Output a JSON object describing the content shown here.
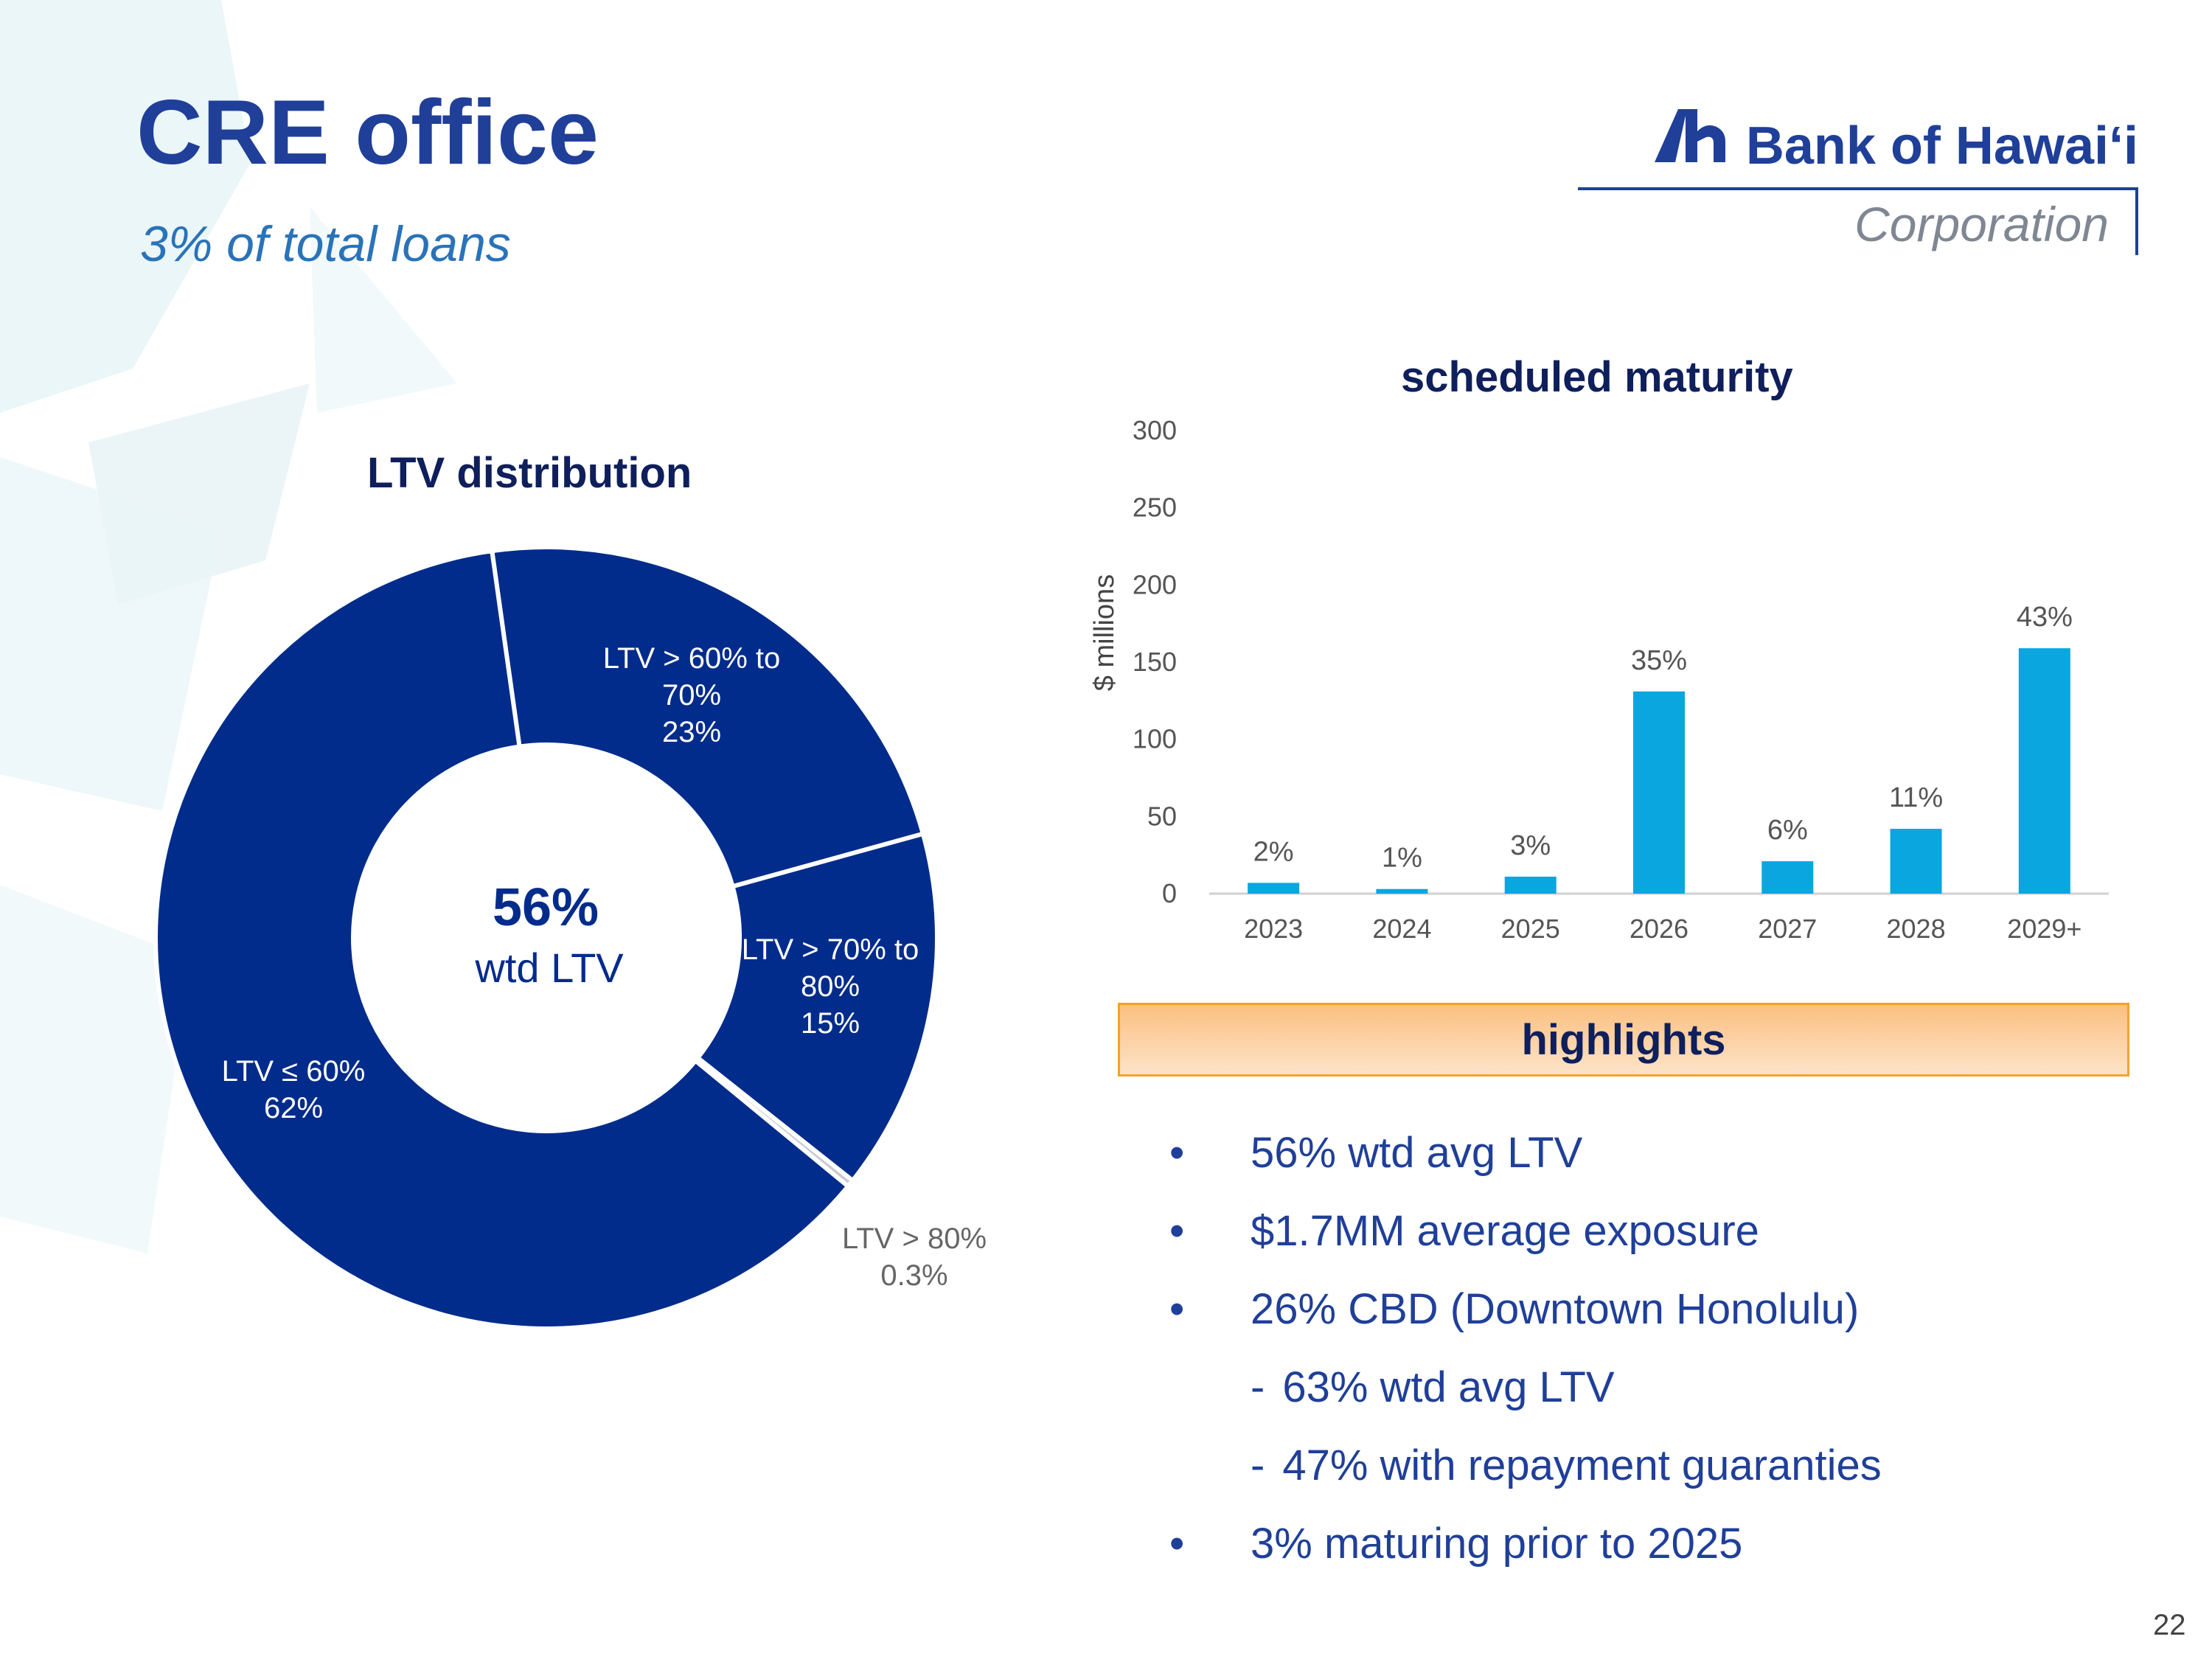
{
  "page": {
    "title": "CRE office",
    "subtitle": "3% of total loans",
    "page_number": "22",
    "logo": {
      "name": "Bank of Hawaiʻi",
      "sub": "Corporation"
    }
  },
  "colors": {
    "title": "#1f3f99",
    "subtitle": "#2a73b8",
    "donut": "#012c8b",
    "bar": "#0aa6df",
    "highlight_border": "#f4a326"
  },
  "chart_data": [
    {
      "type": "pie",
      "title": "LTV distribution",
      "center_value": "56%",
      "center_label": "wtd LTV",
      "slices": [
        {
          "label": "LTV > 60% to 70%",
          "value": 23,
          "text_lines": [
            "LTV > 60% to",
            "70%",
            "23%"
          ]
        },
        {
          "label": "LTV > 70% to 80%",
          "value": 15,
          "text_lines": [
            "LTV > 70% to",
            "80%",
            "15%"
          ]
        },
        {
          "label": "LTV > 80%",
          "value": 0.3,
          "text_lines": [
            "LTV > 80%",
            "0.3%"
          ]
        },
        {
          "label": "LTV ≤ 60%",
          "value": 62,
          "text_lines": [
            "LTV ≤ 60%",
            "62%"
          ]
        }
      ]
    },
    {
      "type": "bar",
      "title": "scheduled maturity",
      "ylabel": "$ millions",
      "xlabel": "",
      "ylim": [
        0,
        300
      ],
      "yticks": [
        "0",
        "50",
        "100",
        "150",
        "200",
        "250",
        "300"
      ],
      "categories": [
        "2023",
        "2024",
        "2025",
        "2026",
        "2027",
        "2028",
        "2029+"
      ],
      "values": [
        7,
        3,
        11,
        131,
        21,
        42,
        159
      ],
      "data_labels": [
        "2%",
        "1%",
        "3%",
        "35%",
        "6%",
        "11%",
        "43%"
      ]
    }
  ],
  "highlights": {
    "title": "highlights",
    "bullet": "•",
    "dash": "-",
    "items": [
      {
        "text": "56% wtd avg LTV"
      },
      {
        "text": "$1.7MM average exposure"
      },
      {
        "text": "26% CBD (Downtown Honolulu)"
      },
      {
        "text": "63% wtd avg LTV"
      },
      {
        "text": "47% with repayment guaranties"
      },
      {
        "text": "3% maturing prior to 2025"
      }
    ]
  }
}
